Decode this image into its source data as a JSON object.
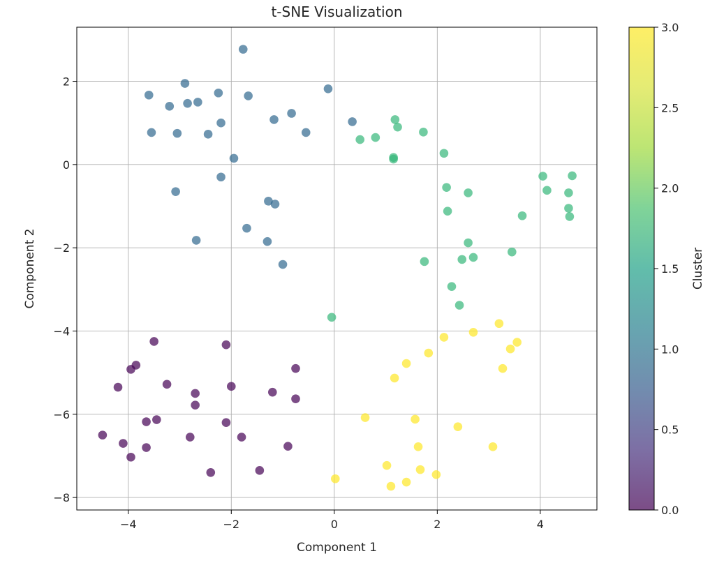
{
  "chart_data": {
    "type": "scatter",
    "title": "t-SNE Visualization",
    "xlabel": "Component 1",
    "ylabel": "Component 2",
    "xlim": [
      -5.0,
      5.1
    ],
    "ylim": [
      -8.3,
      3.3
    ],
    "xticks": [
      -4,
      -2,
      0,
      2,
      4
    ],
    "yticks": [
      -8,
      -6,
      -4,
      -2,
      0,
      2
    ],
    "grid": true,
    "colormap": "viridis",
    "point_alpha": 0.7,
    "colorbar": {
      "label": "Cluster",
      "range": [
        0.0,
        3.0
      ],
      "ticks": [
        "0.0",
        "0.5",
        "1.0",
        "1.5",
        "2.0",
        "2.5",
        "3.0"
      ]
    },
    "series": [
      {
        "cluster": 0,
        "color": "#440154",
        "points": [
          [
            -3.5,
            -4.25
          ],
          [
            -2.1,
            -4.33
          ],
          [
            -3.85,
            -4.82
          ],
          [
            -3.95,
            -4.92
          ],
          [
            -0.75,
            -4.9
          ],
          [
            -4.2,
            -5.35
          ],
          [
            -3.25,
            -5.28
          ],
          [
            -2.0,
            -5.33
          ],
          [
            -2.7,
            -5.5
          ],
          [
            -1.2,
            -5.47
          ],
          [
            -0.75,
            -5.63
          ],
          [
            -2.7,
            -5.78
          ],
          [
            -3.45,
            -6.13
          ],
          [
            -3.65,
            -6.18
          ],
          [
            -2.1,
            -6.2
          ],
          [
            -4.5,
            -6.5
          ],
          [
            -2.8,
            -6.55
          ],
          [
            -1.8,
            -6.55
          ],
          [
            -4.1,
            -6.7
          ],
          [
            -3.65,
            -6.8
          ],
          [
            -0.9,
            -6.77
          ],
          [
            -3.95,
            -7.03
          ],
          [
            -2.4,
            -7.4
          ],
          [
            -1.45,
            -7.35
          ]
        ]
      },
      {
        "cluster": 1,
        "color": "#31688e",
        "points": [
          [
            -1.77,
            2.77
          ],
          [
            -2.9,
            1.95
          ],
          [
            -0.12,
            1.82
          ],
          [
            -3.6,
            1.67
          ],
          [
            -2.25,
            1.72
          ],
          [
            -1.67,
            1.65
          ],
          [
            -2.85,
            1.47
          ],
          [
            -2.65,
            1.5
          ],
          [
            -3.2,
            1.4
          ],
          [
            -0.83,
            1.23
          ],
          [
            -1.17,
            1.08
          ],
          [
            -2.2,
            1.0
          ],
          [
            0.35,
            1.03
          ],
          [
            -3.55,
            0.77
          ],
          [
            -3.05,
            0.75
          ],
          [
            -2.45,
            0.73
          ],
          [
            -0.55,
            0.77
          ],
          [
            -1.95,
            0.15
          ],
          [
            -2.2,
            -0.3
          ],
          [
            -3.08,
            -0.65
          ],
          [
            -1.28,
            -0.88
          ],
          [
            -1.15,
            -0.95
          ],
          [
            -1.7,
            -1.53
          ],
          [
            -2.68,
            -1.82
          ],
          [
            -1.3,
            -1.85
          ],
          [
            -1.0,
            -2.4
          ]
        ]
      },
      {
        "cluster": 2,
        "color": "#35b779",
        "points": [
          [
            1.18,
            1.08
          ],
          [
            1.23,
            0.9
          ],
          [
            1.73,
            0.78
          ],
          [
            0.8,
            0.65
          ],
          [
            0.5,
            0.6
          ],
          [
            2.13,
            0.27
          ],
          [
            1.15,
            0.17
          ],
          [
            1.15,
            0.13
          ],
          [
            4.05,
            -0.28
          ],
          [
            4.62,
            -0.27
          ],
          [
            2.18,
            -0.55
          ],
          [
            4.13,
            -0.62
          ],
          [
            2.6,
            -0.68
          ],
          [
            4.55,
            -0.68
          ],
          [
            2.2,
            -1.12
          ],
          [
            4.55,
            -1.05
          ],
          [
            4.57,
            -1.25
          ],
          [
            3.65,
            -1.23
          ],
          [
            2.6,
            -1.88
          ],
          [
            3.45,
            -2.1
          ],
          [
            2.48,
            -2.28
          ],
          [
            2.7,
            -2.23
          ],
          [
            1.75,
            -2.33
          ],
          [
            2.28,
            -2.93
          ],
          [
            2.43,
            -3.38
          ],
          [
            -0.05,
            -3.67
          ]
        ]
      },
      {
        "cluster": 3,
        "color": "#fde725",
        "points": [
          [
            3.2,
            -3.82
          ],
          [
            2.7,
            -4.03
          ],
          [
            2.13,
            -4.15
          ],
          [
            3.55,
            -4.27
          ],
          [
            3.42,
            -4.43
          ],
          [
            1.83,
            -4.53
          ],
          [
            1.4,
            -4.78
          ],
          [
            3.27,
            -4.9
          ],
          [
            1.17,
            -5.13
          ],
          [
            0.6,
            -6.08
          ],
          [
            1.57,
            -6.12
          ],
          [
            2.4,
            -6.3
          ],
          [
            1.63,
            -6.78
          ],
          [
            3.08,
            -6.78
          ],
          [
            1.02,
            -7.23
          ],
          [
            1.67,
            -7.33
          ],
          [
            1.98,
            -7.45
          ],
          [
            0.02,
            -7.55
          ],
          [
            1.4,
            -7.63
          ],
          [
            1.1,
            -7.73
          ]
        ]
      }
    ]
  }
}
